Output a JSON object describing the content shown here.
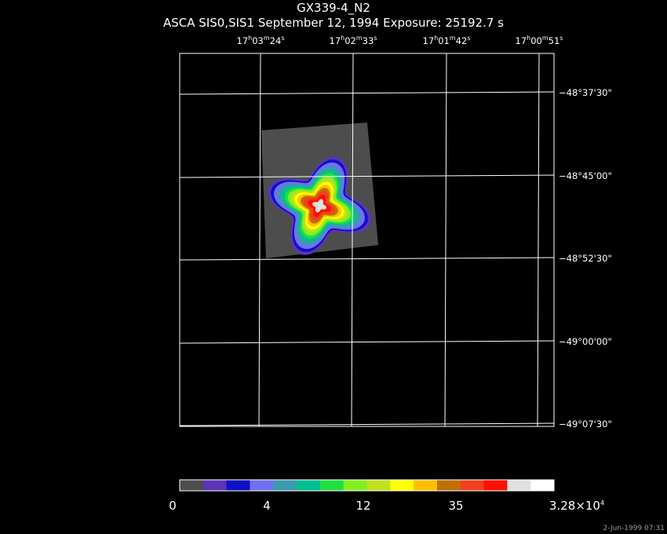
{
  "header": {
    "title": "GX339-4_N2",
    "subtitle": "ASCA SIS0,SIS1 September 12, 1994 Exposure: 25192.7 s"
  },
  "chart_data": {
    "type": "heatmap",
    "title": "GX339-4_N2",
    "subtitle": "ASCA SIS0,SIS1 September 12, 1994 Exposure: 25192.7 s",
    "ra_ticks": [
      {
        "h": "17",
        "m": "03",
        "s": "24"
      },
      {
        "h": "17",
        "m": "02",
        "s": "33"
      },
      {
        "h": "17",
        "m": "01",
        "s": "42"
      },
      {
        "h": "17",
        "m": "00",
        "s": "51"
      }
    ],
    "dec_ticks": [
      "−48°37'30\"",
      "−48°45'00\"",
      "−48°52'30\"",
      "−49°00'00\"",
      "−49°07'30\""
    ],
    "grid": true,
    "colorbar": {
      "colors": [
        "#4d4d4d",
        "#5a35b5",
        "#1010c8",
        "#7070f0",
        "#3a9ab0",
        "#00c090",
        "#20e040",
        "#80f020",
        "#c0e020",
        "#ffff00",
        "#ffc000",
        "#c07000",
        "#f04020",
        "#ff1000",
        "#e0e0e0",
        "#ffffff"
      ],
      "tick_labels": [
        "0",
        "4",
        "12",
        "35",
        "3.28×10⁴"
      ]
    },
    "source_levels": [
      {
        "color": "#4d4d4d",
        "radius": 1.0
      },
      {
        "color": "#5a35b5",
        "radius": 0.66
      },
      {
        "color": "#1010c8",
        "radius": 0.62
      },
      {
        "color": "#7070f0",
        "radius": 0.58
      },
      {
        "color": "#3a9ab0",
        "radius": 0.53
      },
      {
        "color": "#00c090",
        "radius": 0.48
      },
      {
        "color": "#20e040",
        "radius": 0.44
      },
      {
        "color": "#80f020",
        "radius": 0.4
      },
      {
        "color": "#c0e020",
        "radius": 0.36
      },
      {
        "color": "#ffff00",
        "radius": 0.32
      },
      {
        "color": "#ffc000",
        "radius": 0.28
      },
      {
        "color": "#c07000",
        "radius": 0.24
      },
      {
        "color": "#f04020",
        "radius": 0.2
      },
      {
        "color": "#ff1000",
        "radius": 0.15
      },
      {
        "color": "#e0e0e0",
        "radius": 0.09
      }
    ]
  },
  "footer": {
    "timestamp": "2-Jun-1999 07:31"
  }
}
